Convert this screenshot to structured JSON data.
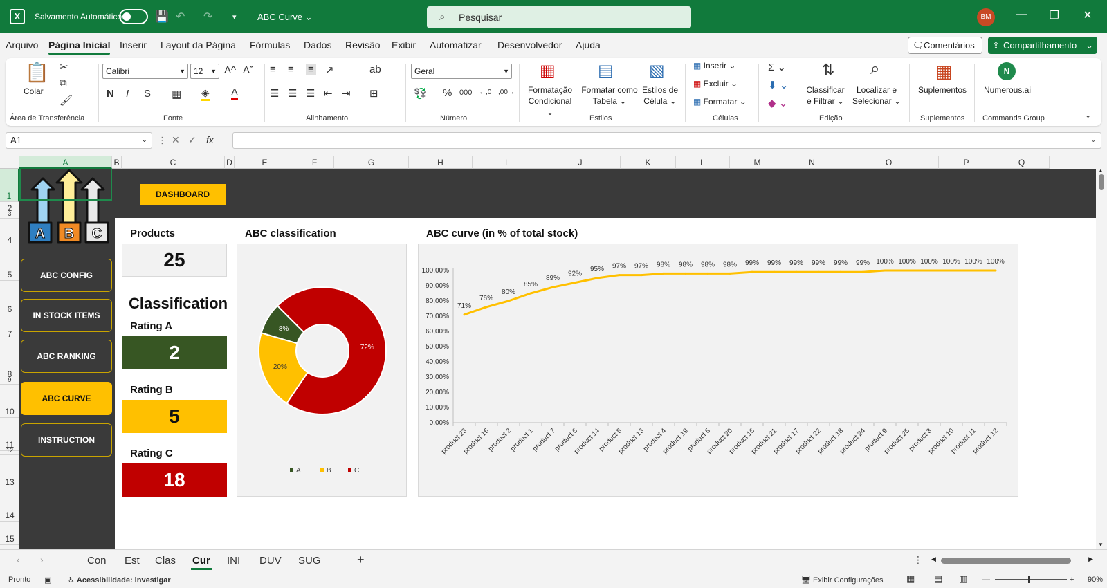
{
  "titlebar": {
    "autosave_label": "Salvamento Automático",
    "doc_title": "ABC Curve",
    "search_placeholder": "Pesquisar",
    "user_initials": "BM"
  },
  "menu": {
    "tabs": [
      "Arquivo",
      "Página Inicial",
      "Inserir",
      "Layout da Página",
      "Fórmulas",
      "Dados",
      "Revisão",
      "Exibir",
      "Automatizar",
      "Desenvolvedor",
      "Ajuda"
    ],
    "active_tab": "Página Inicial",
    "comments_label": "Comentários",
    "share_label": "Compartilhamento"
  },
  "ribbon": {
    "paste_label": "Colar",
    "clipboard_group": "Área de Transferência",
    "font_name": "Calibri",
    "font_size": "12",
    "font_group": "Fonte",
    "bold": "N",
    "italic": "I",
    "underline": "S",
    "alignment_group": "Alinhamento",
    "number_format": "Geral",
    "number_group": "Número",
    "cond_format_l1": "Formatação",
    "cond_format_l2": "Condicional",
    "format_table_l1": "Formatar como",
    "format_table_l2": "Tabela",
    "cell_styles_l1": "Estilos de",
    "cell_styles_l2": "Célula",
    "styles_group": "Estilos",
    "insert_label": "Inserir",
    "delete_label": "Excluir",
    "format_label": "Formatar",
    "cells_group": "Células",
    "sort_l1": "Classificar",
    "sort_l2": "e Filtrar",
    "find_l1": "Localizar e",
    "find_l2": "Selecionar",
    "editing_group": "Edição",
    "addins_label": "Suplementos",
    "addins_group": "Suplementos",
    "numerous_label": "Numerous.ai",
    "commands_group": "Commands Group"
  },
  "formula_bar": {
    "name_box": "A1",
    "fx": "fx",
    "formula": ""
  },
  "grid": {
    "columns": [
      "A",
      "B",
      "C",
      "D",
      "E",
      "F",
      "G",
      "H",
      "I",
      "J",
      "K",
      "L",
      "M",
      "N",
      "O",
      "P",
      "Q"
    ],
    "rows": [
      "1",
      "2",
      "3",
      "4",
      "5",
      "6",
      "7",
      "8",
      "9",
      "10",
      "11",
      "12",
      "13",
      "14",
      "15"
    ]
  },
  "dashboard": {
    "dashboard_button": "DASHBOARD",
    "nav": [
      "ABC CONFIG",
      "IN STOCK ITEMS",
      "ABC RANKING",
      "ABC CURVE",
      "INSTRUCTION"
    ],
    "active_nav": "ABC CURVE",
    "logo_letters": [
      "A",
      "B",
      "C"
    ],
    "products_label": "Products",
    "products_value": "25",
    "classification_label": "Classification",
    "rating_a_label": "Rating A",
    "rating_a_value": "2",
    "rating_b_label": "Rating B",
    "rating_b_value": "5",
    "rating_c_label": "Rating C",
    "rating_c_value": "18",
    "colors": {
      "a": "#375623",
      "b": "#ffc000",
      "c": "#c00000",
      "dark": "#3a3a3a"
    }
  },
  "chart_data": [
    {
      "type": "pie",
      "title": "ABC classification",
      "categories": [
        "A",
        "B",
        "C"
      ],
      "values": [
        8,
        20,
        72
      ],
      "data_labels": [
        "8%",
        "20%",
        "72%"
      ],
      "colors": [
        "#375623",
        "#ffc000",
        "#c00000"
      ],
      "donut": true,
      "legend": "bottom"
    },
    {
      "type": "line",
      "title": "ABC curve (in % of total stock)",
      "categories": [
        "product 23",
        "product 15",
        "product 2",
        "product 1",
        "product 7",
        "product 6",
        "product 14",
        "product 8",
        "product 13",
        "product 4",
        "product 19",
        "product 5",
        "product 20",
        "product 16",
        "product 21",
        "product 17",
        "product 22",
        "product 18",
        "product 24",
        "product 9",
        "product 25",
        "product 3",
        "product 10",
        "product 11",
        "product 12"
      ],
      "series": [
        {
          "values": [
            71,
            76,
            80,
            85,
            89,
            92,
            95,
            97,
            97,
            98,
            98,
            98,
            98,
            99,
            99,
            99,
            99,
            99,
            99,
            100,
            100,
            100,
            100,
            100,
            100
          ],
          "color": "#ffc000"
        }
      ],
      "data_labels": [
        "71%",
        "76%",
        "80%",
        "85%",
        "89%",
        "92%",
        "95%",
        "97%",
        "97%",
        "98%",
        "98%",
        "98%",
        "98%",
        "99%",
        "99%",
        "99%",
        "99%",
        "99%",
        "99%",
        "100%",
        "100%",
        "100%",
        "100%",
        "100%",
        "100%"
      ],
      "yticks": [
        "0,00%",
        "10,00%",
        "20,00%",
        "30,00%",
        "40,00%",
        "50,00%",
        "60,00%",
        "70,00%",
        "80,00%",
        "90,00%",
        "100,00%"
      ],
      "ylim": [
        0,
        100
      ],
      "grid": false,
      "legend": "none"
    }
  ],
  "sheet_tabs": {
    "tabs": [
      "Con",
      "Est",
      "Clas",
      "Cur",
      "INI",
      "DUV",
      "SUG"
    ],
    "active": "Cur"
  },
  "status": {
    "ready": "Pronto",
    "accessibility": "Acessibilidade: investigar",
    "display_settings": "Exibir Configurações",
    "zoom": "90%"
  }
}
